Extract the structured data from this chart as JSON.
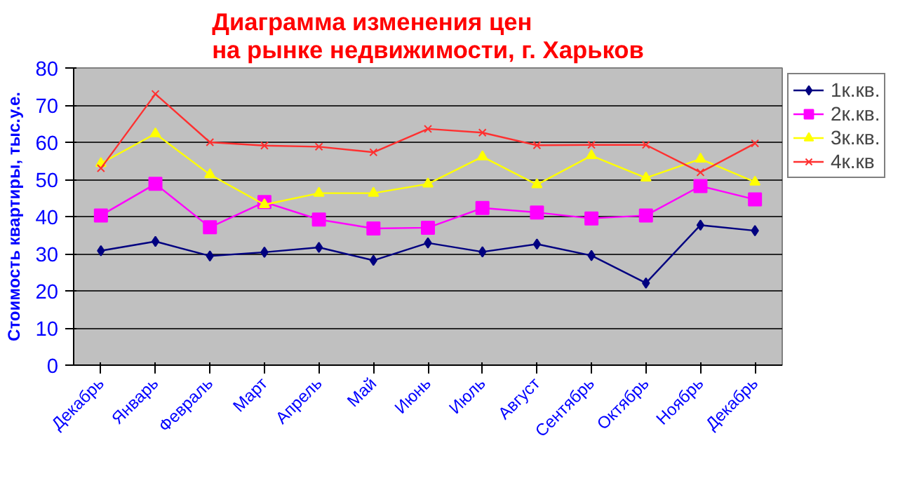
{
  "chart_data": {
    "type": "line",
    "title": "Диаграмма изменения цен\nна рынке недвижимости, г. Харьков",
    "ylabel": "Стоимость квартиры, тыс.у.е.",
    "categories": [
      "Декабрь",
      "Январь",
      "Февраль",
      "Март",
      "Апрель",
      "Май",
      "Июнь",
      "Июль",
      "Август",
      "Сентябрь",
      "Октябрь",
      "Ноябрь",
      "Декабрь"
    ],
    "series": [
      {
        "name": "1к.кв.",
        "color": "#000080",
        "marker": "diamond",
        "values": [
          30.8,
          33.3,
          29.4,
          30.4,
          31.7,
          28.2,
          32.9,
          30.5,
          32.6,
          29.5,
          22.1,
          37.7,
          36.2
        ]
      },
      {
        "name": "2к.кв.",
        "color": "#ff00ff",
        "marker": "square",
        "values": [
          40.3,
          48.8,
          37.1,
          43.9,
          39.2,
          36.8,
          37.0,
          42.3,
          41.1,
          39.5,
          40.3,
          48.2,
          44.6
        ]
      },
      {
        "name": "3к.кв.",
        "color": "#ffff00",
        "marker": "triangle",
        "values": [
          54.3,
          62.3,
          51.3,
          43.2,
          46.3,
          46.3,
          48.8,
          56.1,
          48.6,
          56.4,
          50.4,
          55.5,
          49.3
        ]
      },
      {
        "name": "4к.кв",
        "color": "#ff3030",
        "marker": "cross",
        "values": [
          53.0,
          73.0,
          60.0,
          59.1,
          58.8,
          57.3,
          63.6,
          62.6,
          59.2,
          59.3,
          59.3,
          51.9,
          59.7
        ]
      }
    ],
    "ylim": [
      0,
      80
    ],
    "yticks": [
      0,
      10,
      20,
      30,
      40,
      50,
      60,
      70,
      80
    ],
    "grid": "y",
    "legend": "top right",
    "line_style": "solid"
  }
}
